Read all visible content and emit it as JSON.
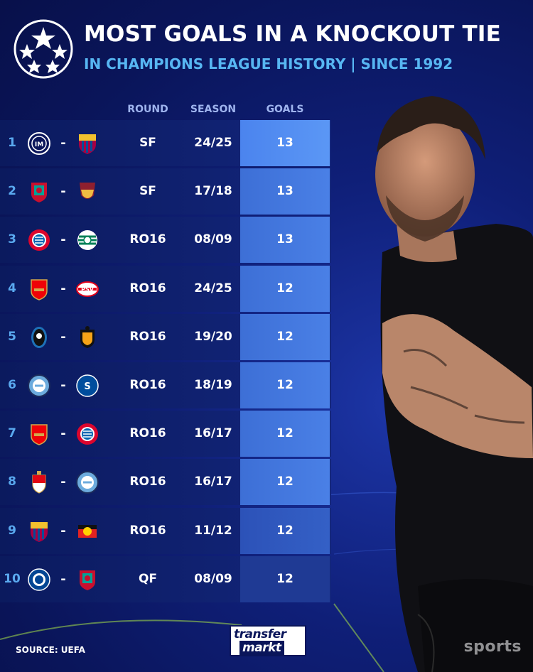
{
  "header": {
    "title": "MOST GOALS IN A KNOCKOUT TIE",
    "subtitle": "IN CHAMPIONS LEAGUE HISTORY | SINCE 1992"
  },
  "columns": {
    "round": "ROUND",
    "season": "SEASON",
    "goals": "GOALS"
  },
  "rows": [
    {
      "rank": "1",
      "team1": "inter-icon",
      "team2": "barcelona-icon",
      "round": "SF",
      "season": "24/25",
      "goals": "13"
    },
    {
      "rank": "2",
      "team1": "liverpool-icon",
      "team2": "roma-icon",
      "round": "SF",
      "season": "17/18",
      "goals": "13"
    },
    {
      "rank": "3",
      "team1": "bayern-icon",
      "team2": "sporting-icon",
      "round": "RO16",
      "season": "08/09",
      "goals": "13"
    },
    {
      "rank": "4",
      "team1": "arsenal-icon",
      "team2": "psv-icon",
      "round": "RO16",
      "season": "24/25",
      "goals": "12"
    },
    {
      "rank": "5",
      "team1": "atalanta-icon",
      "team2": "valencia-icon",
      "round": "RO16",
      "season": "19/20",
      "goals": "12"
    },
    {
      "rank": "6",
      "team1": "man-city-icon",
      "team2": "schalke-icon",
      "round": "RO16",
      "season": "18/19",
      "goals": "12"
    },
    {
      "rank": "7",
      "team1": "arsenal-icon",
      "team2": "bayern-icon",
      "round": "RO16",
      "season": "16/17",
      "goals": "12"
    },
    {
      "rank": "8",
      "team1": "monaco-icon",
      "team2": "man-city-icon",
      "round": "RO16",
      "season": "16/17",
      "goals": "12"
    },
    {
      "rank": "9",
      "team1": "barcelona-icon",
      "team2": "leverkusen-icon",
      "round": "RO16",
      "season": "11/12",
      "goals": "12"
    },
    {
      "rank": "10",
      "team1": "chelsea-icon",
      "team2": "liverpool-icon",
      "round": "QF",
      "season": "08/09",
      "goals": "12"
    }
  ],
  "footer": {
    "source": "SOURCE: UEFA",
    "brand_top": "transfer",
    "brand_bottom": "markt",
    "watermark": "sports"
  },
  "colors": {
    "background": "#0f1f78",
    "accent_blue": "#57b6f2",
    "goals_cell": "#4a80e6"
  }
}
